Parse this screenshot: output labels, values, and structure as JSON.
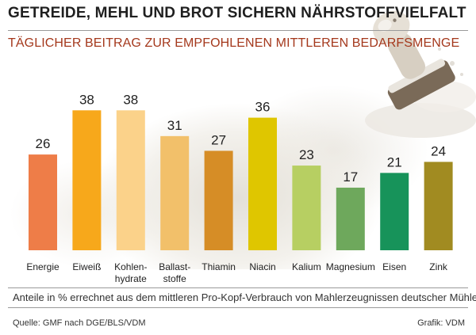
{
  "title": "GETREIDE, MEHL UND BROT SICHERN NÄHRSTOFFVIELFALT",
  "subtitle": "TÄGLICHER BEITRAG ZUR EMPFOHLENEN MITTLEREN BEDARFSMENGE",
  "note": "Anteile in % errechnet aus dem mittleren Pro-Kopf-Verbrauch von Mahlerzeugnissen deutscher Mühlen",
  "source": "Quelle: GMF nach DGE/BLS/VDM",
  "credit": "Grafik: VDM",
  "chart_data": {
    "type": "bar",
    "categories": [
      "Energie",
      "Eiweiß",
      "Kohlen-\nhydrate",
      "Ballast-\nstoffe",
      "Thiamin",
      "Niacin",
      "Kalium",
      "Magnesium",
      "Eisen",
      "Zink"
    ],
    "values": [
      26,
      38,
      38,
      31,
      27,
      36,
      23,
      17,
      21,
      24
    ],
    "colors": [
      "#ee7d48",
      "#f7a81b",
      "#fbd28a",
      "#f2c06a",
      "#d68d26",
      "#dfc600",
      "#b7cf62",
      "#6ea85c",
      "#17935a",
      "#a18b21"
    ],
    "ylim": [
      0,
      40
    ],
    "grid": false
  }
}
